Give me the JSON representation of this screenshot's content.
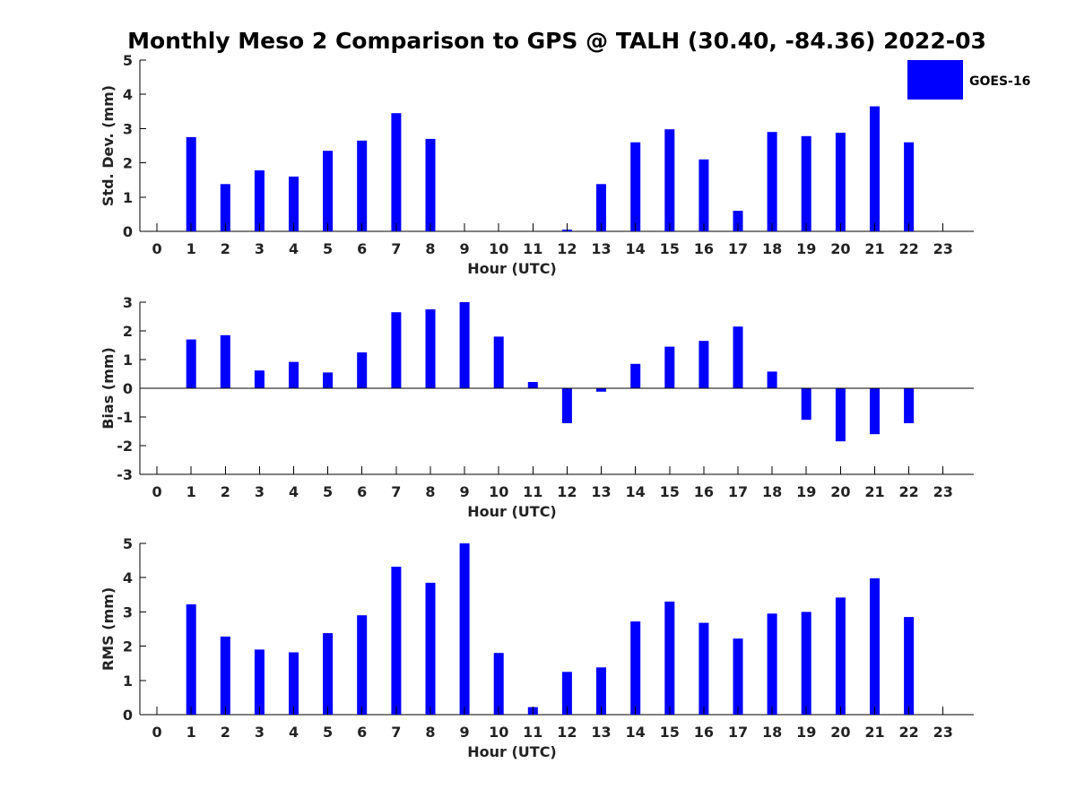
{
  "title": "Monthly Meso 2 Comparison to GPS @ TALH (30.40, -84.36) 2022-03",
  "colors": {
    "bar": "#0000ff",
    "axis": "#000000",
    "text": "#222222"
  },
  "legend": {
    "label": "GOES-16",
    "placement": "top-right"
  },
  "chart_data": [
    {
      "type": "bar",
      "name": "std-dev",
      "ylabel": "Std. Dev. (mm)",
      "xlabel": "Hour (UTC)",
      "ylim": [
        0,
        5
      ],
      "yticks": [
        0,
        1,
        2,
        3,
        4,
        5
      ],
      "x": [
        0,
        1,
        2,
        3,
        4,
        5,
        6,
        7,
        8,
        9,
        10,
        11,
        12,
        13,
        14,
        15,
        16,
        17,
        18,
        19,
        20,
        21,
        22,
        23
      ],
      "xticks": [
        "0",
        "1",
        "2",
        "3",
        "4",
        "5",
        "6",
        "7",
        "8",
        "9",
        "10",
        "11",
        "12",
        "13",
        "14",
        "15",
        "16",
        "17",
        "18",
        "19",
        "20",
        "21",
        "22",
        "23"
      ],
      "values": [
        null,
        2.75,
        1.38,
        1.78,
        1.6,
        2.35,
        2.65,
        3.45,
        2.7,
        null,
        null,
        null,
        0.05,
        1.38,
        2.6,
        2.98,
        2.1,
        0.6,
        2.9,
        2.78,
        2.88,
        3.65,
        2.6,
        null
      ],
      "grid": false
    },
    {
      "type": "bar",
      "name": "bias",
      "ylabel": "Bias (mm)",
      "xlabel": "Hour (UTC)",
      "ylim": [
        -3,
        3
      ],
      "yticks": [
        -3,
        -2,
        -1,
        0,
        1,
        2,
        3
      ],
      "x": [
        0,
        1,
        2,
        3,
        4,
        5,
        6,
        7,
        8,
        9,
        10,
        11,
        12,
        13,
        14,
        15,
        16,
        17,
        18,
        19,
        20,
        21,
        22,
        23
      ],
      "xticks": [
        "0",
        "1",
        "2",
        "3",
        "4",
        "5",
        "6",
        "7",
        "8",
        "9",
        "10",
        "11",
        "12",
        "13",
        "14",
        "15",
        "16",
        "17",
        "18",
        "19",
        "20",
        "21",
        "22",
        "23"
      ],
      "values": [
        null,
        1.7,
        1.85,
        0.62,
        0.92,
        0.55,
        1.25,
        2.65,
        2.75,
        3.0,
        1.8,
        0.22,
        -1.22,
        -0.12,
        0.85,
        1.45,
        1.65,
        2.15,
        0.58,
        -1.1,
        -1.85,
        -1.6,
        -1.22,
        null
      ],
      "grid": false,
      "zero_line": true
    },
    {
      "type": "bar",
      "name": "rms",
      "ylabel": "RMS (mm)",
      "xlabel": "Hour (UTC)",
      "ylim": [
        0,
        5
      ],
      "yticks": [
        0,
        1,
        2,
        3,
        4,
        5
      ],
      "x": [
        0,
        1,
        2,
        3,
        4,
        5,
        6,
        7,
        8,
        9,
        10,
        11,
        12,
        13,
        14,
        15,
        16,
        17,
        18,
        19,
        20,
        21,
        22,
        23
      ],
      "xticks": [
        "0",
        "1",
        "2",
        "3",
        "4",
        "5",
        "6",
        "7",
        "8",
        "9",
        "10",
        "11",
        "12",
        "13",
        "14",
        "15",
        "16",
        "17",
        "18",
        "19",
        "20",
        "21",
        "22",
        "23"
      ],
      "values": [
        null,
        3.22,
        2.28,
        1.9,
        1.82,
        2.38,
        2.9,
        4.32,
        3.85,
        5.0,
        1.8,
        0.22,
        1.25,
        1.38,
        2.72,
        3.3,
        2.68,
        2.22,
        2.95,
        3.0,
        3.42,
        3.98,
        2.85,
        null
      ],
      "grid": false
    }
  ]
}
